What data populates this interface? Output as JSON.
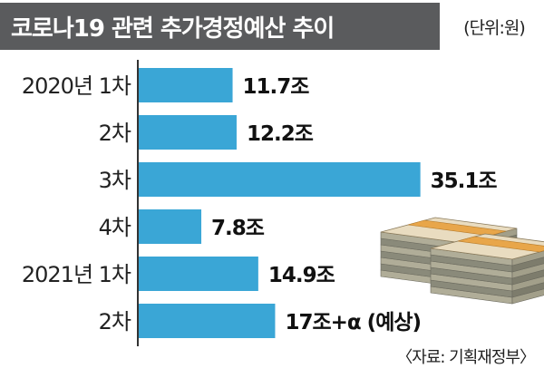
{
  "header": {
    "title": "코로나19 관련 추가경정예산 추이",
    "unit": "(단위:원)"
  },
  "footer": {
    "source": "〈자료: 기획재정부〉"
  },
  "colors": {
    "title_bg": "#5a5b5d",
    "bar": "#3aa6d6",
    "axis": "#333333"
  },
  "icons": [
    "money-stack-icon"
  ],
  "chart_data": {
    "type": "bar",
    "orientation": "horizontal",
    "categories": [
      "2020년 1차",
      "2차",
      "3차",
      "4차",
      "2021년 1차",
      "2차"
    ],
    "values": [
      11.7,
      12.2,
      35.1,
      7.8,
      14.9,
      17
    ],
    "value_labels": [
      "11.7조",
      "12.2조",
      "35.1조",
      "7.8조",
      "14.9조",
      "17조+α (예상)"
    ],
    "xlim": [
      0,
      37
    ],
    "grid": false,
    "legend": "none"
  }
}
